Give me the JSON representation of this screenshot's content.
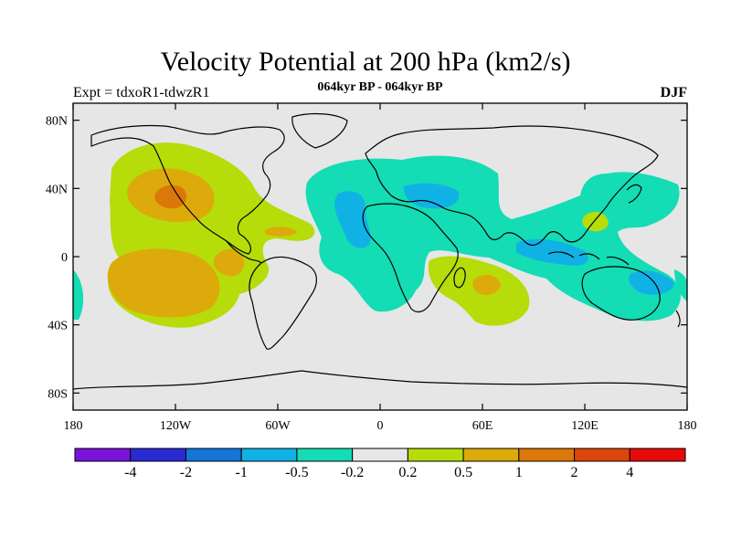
{
  "title": "Velocity Potential at 200 hPa (km2/s)",
  "subtitle": "064kyr BP - 064kyr BP",
  "left_label": "Expt = tdxoR1-tdwzR1",
  "right_label": "DJF",
  "axes": {
    "lat_ticks": [
      "80N",
      "40N",
      "0",
      "40S",
      "80S"
    ],
    "lat_values": [
      80,
      40,
      0,
      -40,
      -80
    ],
    "lon_ticks": [
      "180",
      "120W",
      "60W",
      "0",
      "60E",
      "120E",
      "180"
    ],
    "lon_values": [
      -180,
      -120,
      -60,
      0,
      60,
      120,
      180
    ],
    "lat_range": [
      -90,
      90
    ],
    "lon_range": [
      -180,
      180
    ]
  },
  "colorbar": {
    "colors": [
      "#7a12dc",
      "#2a2ad2",
      "#1476d6",
      "#10b2e6",
      "#14dcb4",
      "#e6e6e6",
      "#b6dc0a",
      "#dcaa0a",
      "#dc780a",
      "#dc460a",
      "#e60a0a"
    ],
    "labels": [
      "-4",
      "-2",
      "-1",
      "-0.5",
      "-0.2",
      "0.2",
      "0.5",
      "1",
      "2",
      "4"
    ]
  },
  "palette": {
    "neutral": "#e6e6e6",
    "neg_weak": "#14dcb4",
    "neg_mid": "#10b2e6",
    "pos_weak": "#b6dc0a",
    "pos_mid": "#dcaa0a",
    "pos_strong": "#dc780a"
  }
}
